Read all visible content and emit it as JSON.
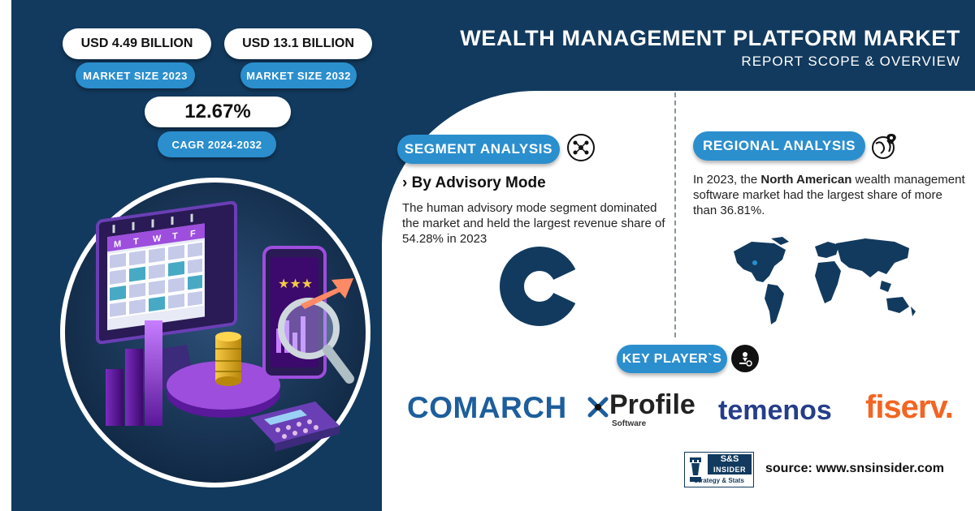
{
  "header": {
    "title": "WEALTH MANAGEMENT PLATFORM MARKET",
    "subtitle": "REPORT SCOPE & OVERVIEW"
  },
  "stats": {
    "market_size_2023_value": "USD 4.49 BILLION",
    "market_size_2023_label": "MARKET SIZE 2023",
    "market_size_2032_value": "USD 13.1 BILLION",
    "market_size_2032_label": "MARKET SIZE 2032",
    "cagr_value": "12.67%",
    "cagr_label": "CAGR 2024-2032"
  },
  "segment": {
    "heading": "SEGMENT ANALYSIS",
    "subheading": "› By Advisory Mode",
    "description": "The human advisory mode segment dominated the market and held the largest revenue share of 54.28% in 2023",
    "icon": "people-network-icon",
    "donut_share": 0.5428
  },
  "regional": {
    "heading": "REGIONAL ANALYSIS",
    "text_prefix": "In 2023, the ",
    "text_bold": "North American",
    "text_suffix": " wealth management software market had the largest share of more than 36.81%.",
    "icon": "globe-pin-icon"
  },
  "key_players": {
    "heading": "KEY PLAYER`S",
    "icon": "person-badge-icon",
    "comarch": "COMARCH",
    "profile_main": "Profile",
    "profile_sub": "Software",
    "temenos": "temenos",
    "fiserv": "fiserv."
  },
  "footer": {
    "badge_line1": "S&S",
    "badge_line2": "INSIDER",
    "badge_line3": "Strategy & Stats",
    "source": "source: www.snsinsider.com"
  },
  "calendar": {
    "days": [
      "M",
      "T",
      "W",
      "T",
      "F"
    ]
  },
  "colors": {
    "navy": "#123a5e",
    "accent_blue": "#2b8fce",
    "fiserv_orange": "#f26522",
    "temenos_navy": "#253d8a",
    "comarch_blue": "#1d5e9c"
  }
}
